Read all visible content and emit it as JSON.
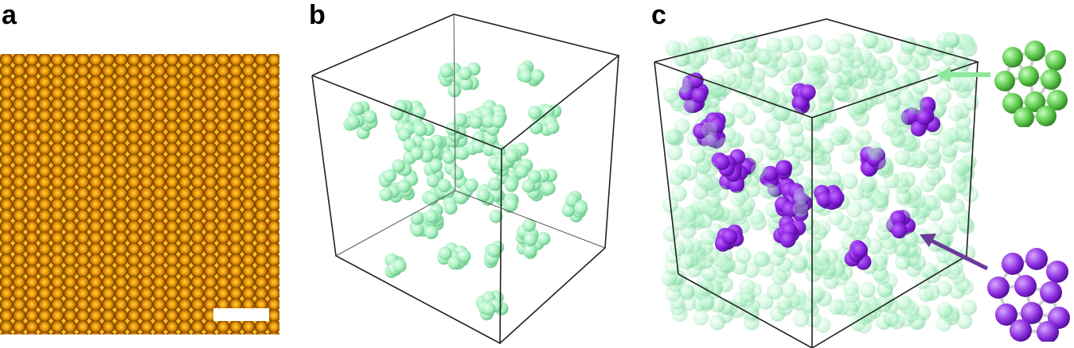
{
  "panels": {
    "a": {
      "label": "a"
    },
    "b": {
      "label": "b"
    },
    "c": {
      "label": "c"
    }
  },
  "colors": {
    "micrograph_base": "#b86a00",
    "green_sphere": "#a8f0c0",
    "purple_sphere": "#8a1fe0",
    "green_arrow": "#8ee89a",
    "purple_arrow": "#6b3a9a",
    "box_edge": "#222222",
    "bond": "#cfcfcf"
  },
  "icons": {
    "green_cluster": "green-icosahedral-cluster-icon",
    "purple_cluster": "purple-icosahedral-cluster-icon"
  }
}
